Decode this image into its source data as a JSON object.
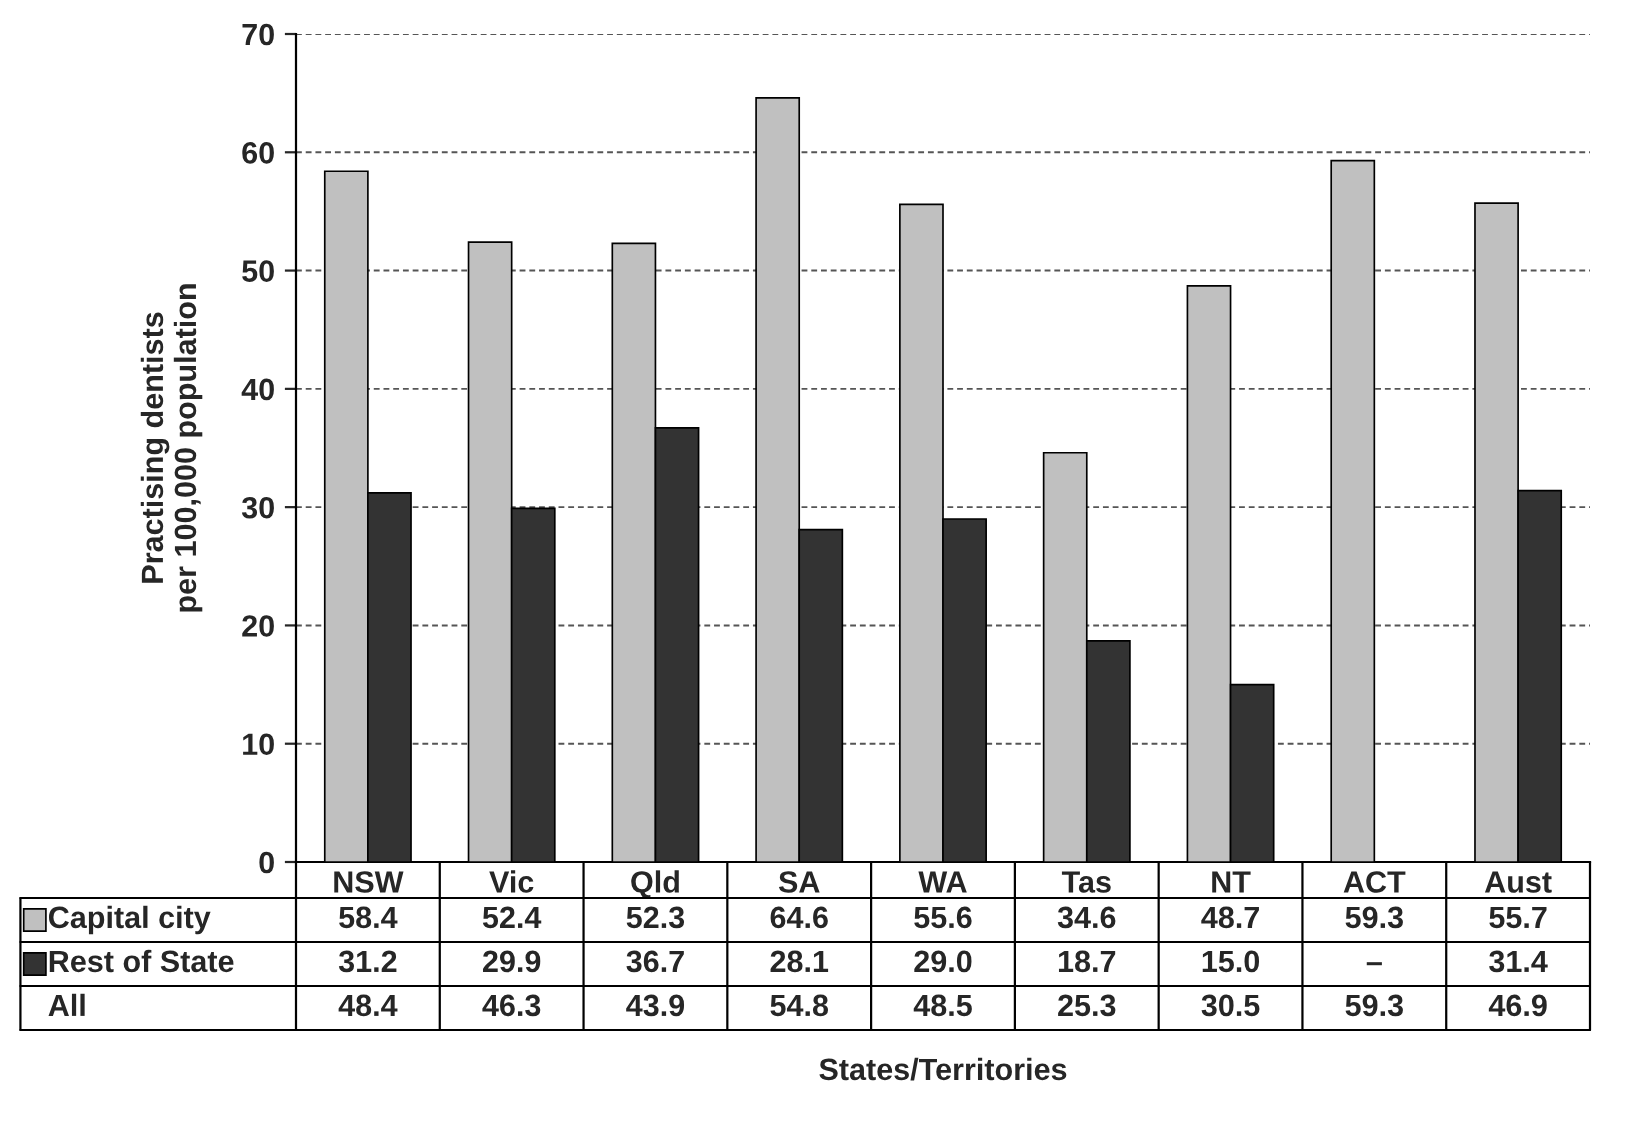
{
  "chart_data": {
    "type": "bar",
    "categories": [
      "NSW",
      "Vic",
      "Qld",
      "SA",
      "WA",
      "Tas",
      "NT",
      "ACT",
      "Aust"
    ],
    "series": [
      {
        "name": "Capital city",
        "color": "#c0c0c0",
        "values": [
          58.4,
          52.4,
          52.3,
          64.6,
          55.6,
          34.6,
          48.7,
          59.3,
          55.7
        ]
      },
      {
        "name": "Rest of State",
        "color": "#333333",
        "values": [
          31.2,
          29.9,
          36.7,
          28.1,
          29.0,
          18.7,
          15.0,
          null,
          31.4
        ],
        "value_labels": [
          "31.2",
          "29.9",
          "36.7",
          "28.1",
          "29.0",
          "18.7",
          "15.0",
          "–",
          "31.4"
        ]
      },
      {
        "name": "All",
        "type": "other",
        "values": [
          null,
          null,
          null,
          null,
          null,
          null,
          null,
          null,
          null
        ],
        "value_labels": [
          "48.4",
          "46.3",
          "43.9",
          "54.8",
          "48.5",
          "25.3",
          "30.5",
          "59.3",
          "46.9"
        ]
      }
    ],
    "ylim": [
      0,
      70
    ],
    "yticks": [
      0,
      10,
      20,
      30,
      40,
      50,
      60,
      70
    ],
    "ylabel": "Practising dentists\nper 100,000 population",
    "annotations": [
      "States/Territories"
    ],
    "grid": "y",
    "legend": "bottom left",
    "data_labels": true
  }
}
